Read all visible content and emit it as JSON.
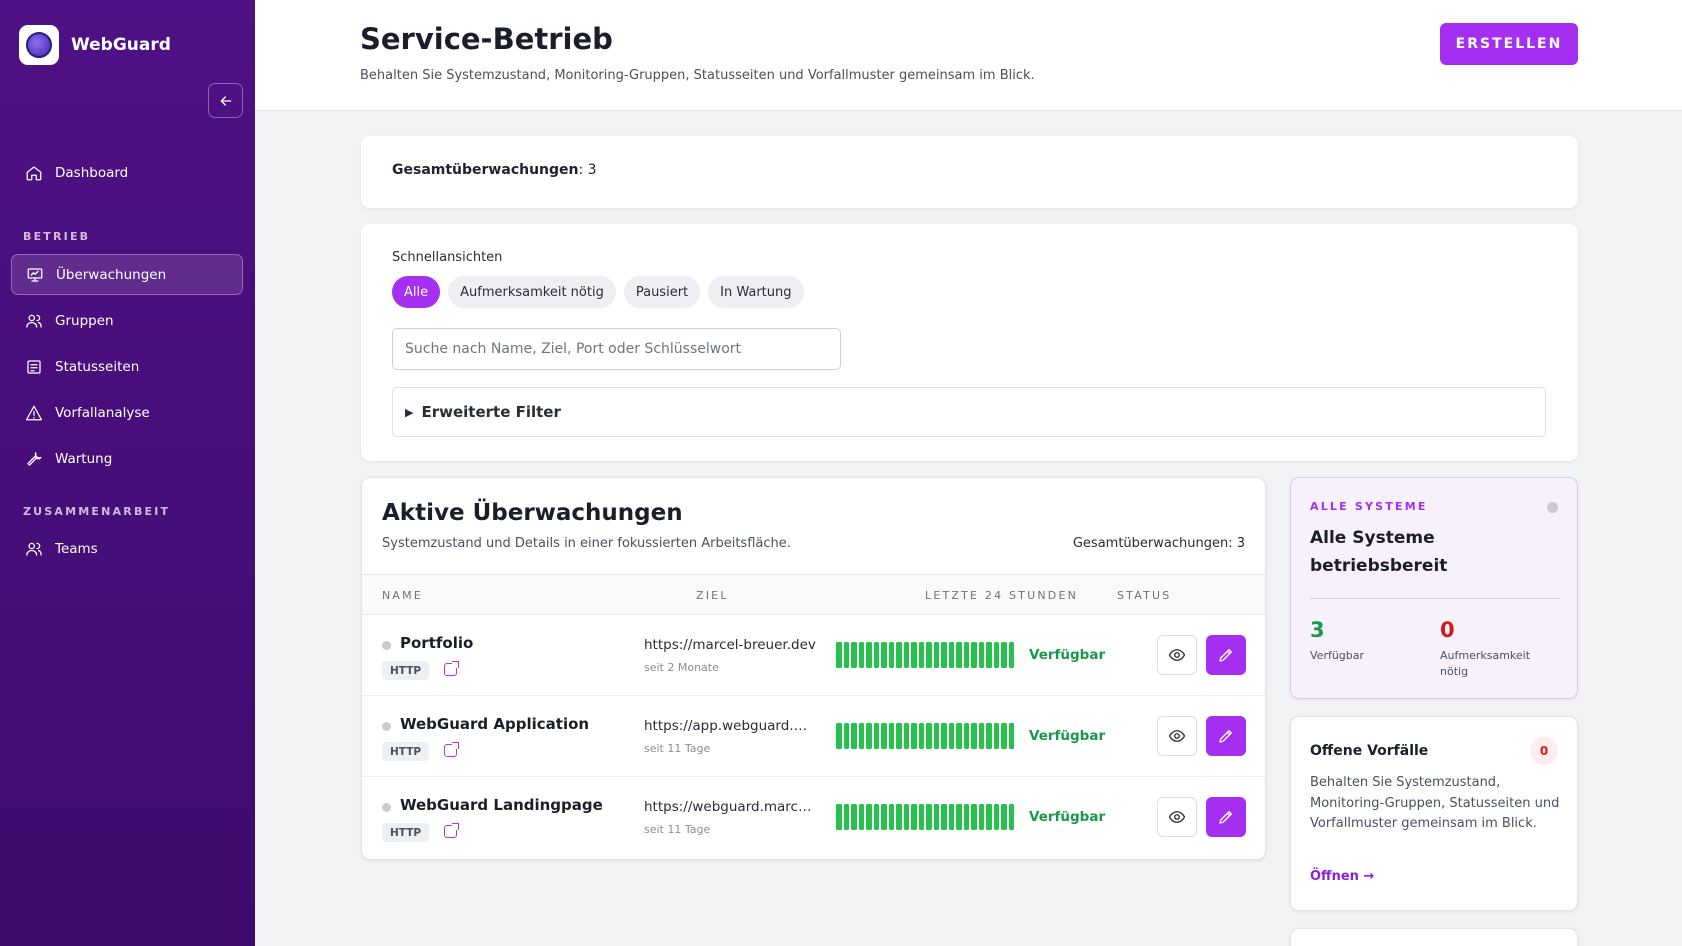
{
  "app": {
    "name": "WebGuard"
  },
  "sidebar": {
    "collapse_icon": "arrow-left-icon",
    "dashboard": {
      "label": "Dashboard",
      "icon": "home-icon"
    },
    "section_ops": "BETRIEB",
    "ops_items": [
      {
        "label": "Überwachungen",
        "icon": "monitor-icon",
        "active": true
      },
      {
        "label": "Gruppen",
        "icon": "users-icon"
      },
      {
        "label": "Statusseiten",
        "icon": "document-icon"
      },
      {
        "label": "Vorfallanalyse",
        "icon": "warning-icon"
      },
      {
        "label": "Wartung",
        "icon": "wrench-icon"
      }
    ],
    "section_collab": "ZUSAMMENARBEIT",
    "collab_items": [
      {
        "label": "Teams",
        "icon": "users-icon"
      }
    ]
  },
  "header": {
    "title": "Service-Betrieb",
    "subtitle": "Behalten Sie Systemzustand, Monitoring-Gruppen, Statusseiten und Vorfallmuster gemeinsam im Blick.",
    "create_label": "ERSTELLEN"
  },
  "summary": {
    "label": "Gesamtüberwachungen",
    "value": ": 3"
  },
  "filters": {
    "quick_views_label": "Schnellansichten",
    "chips": [
      "Alle",
      "Aufmerksamkeit nötig",
      "Pausiert",
      "In Wartung"
    ],
    "active_chip": "Alle",
    "search_placeholder": "Suche nach Name, Ziel, Port oder Schlüsselwort",
    "search_value": "",
    "advanced_label": "Erweiterte Filter"
  },
  "monitors": {
    "title": "Aktive Überwachungen",
    "subtitle": "Systemzustand und Details in einer fokussierten Arbeitsfläche.",
    "count_label": "Gesamtüberwachungen: 3",
    "columns": [
      "NAME",
      "ZIEL",
      "LETZTE 24 STUNDEN",
      "STATUS"
    ],
    "rows": [
      {
        "name": "Portfolio",
        "type": "HTTP",
        "target": "https://marcel-breuer.dev",
        "since": "seit 2 Monate",
        "status": "Verfügbar",
        "uptime_bars": 24
      },
      {
        "name": "WebGuard Application",
        "type": "HTTP",
        "target": "https://app.webguard.marcel-breuer.dev",
        "since": "seit 11 Tage",
        "status": "Verfügbar",
        "uptime_bars": 24
      },
      {
        "name": "WebGuard Landingpage",
        "type": "HTTP",
        "target": "https://webguard.marcel-breuer.dev",
        "since": "seit 11 Tage",
        "status": "Verfügbar",
        "uptime_bars": 24
      }
    ],
    "colors": {
      "up_bar": "#25c24c",
      "status_ok": "#17994a",
      "accent": "#a52ff0"
    }
  },
  "systems": {
    "eyebrow": "ALLE SYSTEME",
    "title": "Alle Systeme betriebsbereit",
    "available_value": "3",
    "available_label": "Verfügbar",
    "attention_value": "0",
    "attention_label": "Aufmerksamkeit nötig"
  },
  "incidents": {
    "title": "Offene Vorfälle",
    "count": "0",
    "text": "Behalten Sie Systemzustand, Monitoring-Gruppen, Statusseiten und Vorfallmuster gemeinsam im Blick.",
    "link": "Öffnen →"
  }
}
